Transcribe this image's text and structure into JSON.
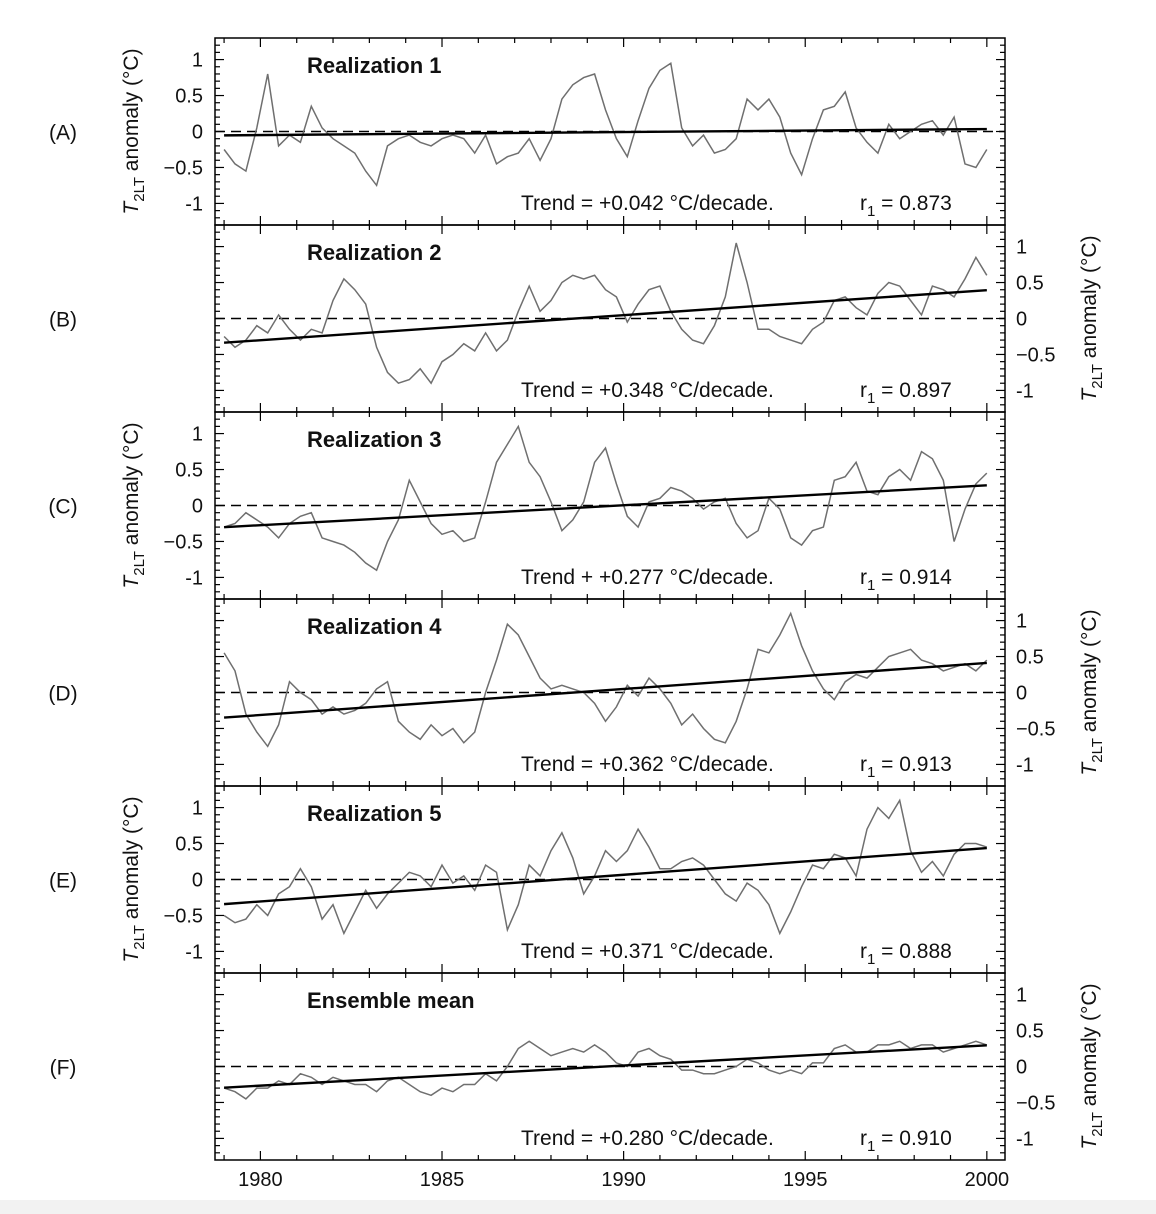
{
  "chart_data": {
    "type": "line",
    "x_axis": {
      "range": [
        1978.75,
        2000.5
      ],
      "ticks": [
        1980,
        1985,
        1990,
        1995,
        2000
      ],
      "tick_labels": [
        "1980",
        "1985",
        "1990",
        "1995",
        "2000"
      ]
    },
    "y_axis": {
      "range": [
        -1.3,
        1.3
      ],
      "ticks": [
        1,
        0.5,
        0,
        -0.5,
        -1
      ],
      "tick_labels": [
        "1",
        "0.5",
        "0",
        "−0.5",
        "-1"
      ],
      "label_main": "T",
      "label_sub": "2LT",
      "label_rest": " anomaly (°C)"
    },
    "panels": [
      {
        "letter": "(A)",
        "title": "Realization 1",
        "stat_text": "Trend = +0.042 °C/decade.",
        "r1_label": "r",
        "r1_sub": "1",
        "r1_value": " = 0.873",
        "trend": 0.042,
        "r1": 0.873,
        "axis_side": "left",
        "color_line": "#6f6f6f",
        "anomaly": {
          "x": [
            1979.0,
            1979.3,
            1979.6,
            1979.9,
            1980.2,
            1980.5,
            1980.8,
            1981.1,
            1981.4,
            1981.7,
            1982.0,
            1982.3,
            1982.6,
            1982.9,
            1983.2,
            1983.5,
            1983.8,
            1984.1,
            1984.4,
            1984.7,
            1985.0,
            1985.3,
            1985.6,
            1985.9,
            1986.2,
            1986.5,
            1986.8,
            1987.1,
            1987.4,
            1987.7,
            1988.0,
            1988.3,
            1988.6,
            1988.9,
            1989.2,
            1989.5,
            1989.8,
            1990.1,
            1990.4,
            1990.7,
            1991.0,
            1991.3,
            1991.6,
            1991.9,
            1992.2,
            1992.5,
            1992.8,
            1993.1,
            1993.4,
            1993.7,
            1994.0,
            1994.3,
            1994.6,
            1994.9,
            1995.2,
            1995.5,
            1995.8,
            1996.1,
            1996.4,
            1996.7,
            1997.0,
            1997.3,
            1997.6,
            1997.9,
            1998.2,
            1998.5,
            1998.8,
            1999.1,
            1999.4,
            1999.7,
            2000.0
          ],
          "y": [
            -0.25,
            -0.45,
            -0.55,
            0.05,
            0.8,
            -0.2,
            -0.05,
            -0.15,
            0.35,
            0.05,
            -0.1,
            -0.2,
            -0.3,
            -0.55,
            -0.75,
            -0.2,
            -0.1,
            -0.05,
            -0.15,
            -0.2,
            -0.1,
            -0.05,
            -0.1,
            -0.3,
            -0.05,
            -0.45,
            -0.35,
            -0.3,
            -0.1,
            -0.4,
            -0.1,
            0.45,
            0.65,
            0.75,
            0.8,
            0.3,
            -0.1,
            -0.35,
            0.15,
            0.6,
            0.85,
            0.95,
            0.05,
            -0.2,
            -0.05,
            -0.3,
            -0.25,
            -0.1,
            0.45,
            0.3,
            0.45,
            0.2,
            -0.3,
            -0.6,
            -0.1,
            0.3,
            0.35,
            0.55,
            0.05,
            -0.15,
            -0.3,
            0.1,
            -0.1,
            0.0,
            0.1,
            0.15,
            -0.05,
            0.2,
            -0.45,
            -0.5,
            -0.25
          ]
        }
      },
      {
        "letter": "(B)",
        "title": "Realization 2",
        "stat_text": "Trend = +0.348 °C/decade.",
        "r1_label": "r",
        "r1_sub": "1",
        "r1_value": " = 0.897",
        "trend": 0.348,
        "r1": 0.897,
        "axis_side": "right",
        "color_line": "#6f6f6f",
        "anomaly": {
          "x": [
            1979.0,
            1979.3,
            1979.6,
            1979.9,
            1980.2,
            1980.5,
            1980.8,
            1981.1,
            1981.4,
            1981.7,
            1982.0,
            1982.3,
            1982.6,
            1982.9,
            1983.2,
            1983.5,
            1983.8,
            1984.1,
            1984.4,
            1984.7,
            1985.0,
            1985.3,
            1985.6,
            1985.9,
            1986.2,
            1986.5,
            1986.8,
            1987.1,
            1987.4,
            1987.7,
            1988.0,
            1988.3,
            1988.6,
            1988.9,
            1989.2,
            1989.5,
            1989.8,
            1990.1,
            1990.4,
            1990.7,
            1991.0,
            1991.3,
            1991.6,
            1991.9,
            1992.2,
            1992.5,
            1992.8,
            1993.1,
            1993.4,
            1993.7,
            1994.0,
            1994.3,
            1994.6,
            1994.9,
            1995.2,
            1995.5,
            1995.8,
            1996.1,
            1996.4,
            1996.7,
            1997.0,
            1997.3,
            1997.6,
            1997.9,
            1998.2,
            1998.5,
            1998.8,
            1999.1,
            1999.4,
            1999.7,
            2000.0
          ],
          "y": [
            -0.25,
            -0.4,
            -0.3,
            -0.1,
            -0.2,
            0.05,
            -0.15,
            -0.3,
            -0.15,
            -0.2,
            0.25,
            0.55,
            0.4,
            0.2,
            -0.4,
            -0.75,
            -0.9,
            -0.85,
            -0.7,
            -0.9,
            -0.6,
            -0.5,
            -0.35,
            -0.45,
            -0.2,
            -0.45,
            -0.3,
            0.1,
            0.45,
            0.1,
            0.25,
            0.5,
            0.6,
            0.55,
            0.6,
            0.4,
            0.3,
            -0.05,
            0.2,
            0.4,
            0.45,
            0.1,
            -0.15,
            -0.3,
            -0.35,
            -0.1,
            0.3,
            1.05,
            0.5,
            -0.15,
            -0.15,
            -0.25,
            -0.3,
            -0.35,
            -0.15,
            -0.05,
            0.25,
            0.3,
            0.15,
            0.05,
            0.35,
            0.5,
            0.45,
            0.25,
            0.05,
            0.45,
            0.4,
            0.3,
            0.55,
            0.85,
            0.6
          ]
        }
      },
      {
        "letter": "(C)",
        "title": "Realization 3",
        "stat_text": "Trend + +0.277 °C/decade.",
        "r1_label": "r",
        "r1_sub": "1",
        "r1_value": " = 0.914",
        "trend": 0.277,
        "r1": 0.914,
        "axis_side": "left",
        "color_line": "#6f6f6f",
        "anomaly": {
          "x": [
            1979.0,
            1979.3,
            1979.6,
            1979.9,
            1980.2,
            1980.5,
            1980.8,
            1981.1,
            1981.4,
            1981.7,
            1982.0,
            1982.3,
            1982.6,
            1982.9,
            1983.2,
            1983.5,
            1983.8,
            1984.1,
            1984.4,
            1984.7,
            1985.0,
            1985.3,
            1985.6,
            1985.9,
            1986.2,
            1986.5,
            1986.8,
            1987.1,
            1987.4,
            1987.7,
            1988.0,
            1988.3,
            1988.6,
            1988.9,
            1989.2,
            1989.5,
            1989.8,
            1990.1,
            1990.4,
            1990.7,
            1991.0,
            1991.3,
            1991.6,
            1991.9,
            1992.2,
            1992.5,
            1992.8,
            1993.1,
            1993.4,
            1993.7,
            1994.0,
            1994.3,
            1994.6,
            1994.9,
            1995.2,
            1995.5,
            1995.8,
            1996.1,
            1996.4,
            1996.7,
            1997.0,
            1997.3,
            1997.6,
            1997.9,
            1998.2,
            1998.5,
            1998.8,
            1999.1,
            1999.4,
            1999.7,
            2000.0
          ],
          "y": [
            -0.3,
            -0.25,
            -0.1,
            -0.2,
            -0.3,
            -0.45,
            -0.25,
            -0.15,
            -0.1,
            -0.45,
            -0.5,
            -0.55,
            -0.65,
            -0.8,
            -0.9,
            -0.5,
            -0.2,
            0.35,
            0.05,
            -0.25,
            -0.4,
            -0.35,
            -0.5,
            -0.45,
            0.05,
            0.6,
            0.85,
            1.1,
            0.6,
            0.4,
            0.05,
            -0.35,
            -0.2,
            0.05,
            0.6,
            0.8,
            0.3,
            -0.15,
            -0.3,
            0.05,
            0.1,
            0.25,
            0.2,
            0.1,
            -0.05,
            0.05,
            0.1,
            -0.25,
            -0.45,
            -0.35,
            0.1,
            -0.05,
            -0.45,
            -0.55,
            -0.35,
            -0.3,
            0.35,
            0.4,
            0.6,
            0.2,
            0.15,
            0.4,
            0.5,
            0.35,
            0.75,
            0.65,
            0.35,
            -0.5,
            -0.05,
            0.3,
            0.45
          ]
        }
      },
      {
        "letter": "(D)",
        "title": "Realization 4",
        "stat_text": "Trend = +0.362 °C/decade.",
        "r1_label": "r",
        "r1_sub": "1",
        "r1_value": " = 0.913",
        "trend": 0.362,
        "r1": 0.913,
        "axis_side": "right",
        "color_line": "#6f6f6f",
        "anomaly": {
          "x": [
            1979.0,
            1979.3,
            1979.6,
            1979.9,
            1980.2,
            1980.5,
            1980.8,
            1981.1,
            1981.4,
            1981.7,
            1982.0,
            1982.3,
            1982.6,
            1982.9,
            1983.2,
            1983.5,
            1983.8,
            1984.1,
            1984.4,
            1984.7,
            1985.0,
            1985.3,
            1985.6,
            1985.9,
            1986.2,
            1986.5,
            1986.8,
            1987.1,
            1987.4,
            1987.7,
            1988.0,
            1988.3,
            1988.6,
            1988.9,
            1989.2,
            1989.5,
            1989.8,
            1990.1,
            1990.4,
            1990.7,
            1991.0,
            1991.3,
            1991.6,
            1991.9,
            1992.2,
            1992.5,
            1992.8,
            1993.1,
            1993.4,
            1993.7,
            1994.0,
            1994.3,
            1994.6,
            1994.9,
            1995.2,
            1995.5,
            1995.8,
            1996.1,
            1996.4,
            1996.7,
            1997.0,
            1997.3,
            1997.6,
            1997.9,
            1998.2,
            1998.5,
            1998.8,
            1999.1,
            1999.4,
            1999.7,
            2000.0
          ],
          "y": [
            0.55,
            0.3,
            -0.3,
            -0.55,
            -0.75,
            -0.45,
            0.15,
            0.0,
            -0.1,
            -0.3,
            -0.2,
            -0.3,
            -0.25,
            -0.15,
            0.05,
            0.15,
            -0.4,
            -0.55,
            -0.65,
            -0.45,
            -0.6,
            -0.5,
            -0.7,
            -0.55,
            0.0,
            0.45,
            0.95,
            0.8,
            0.5,
            0.2,
            0.05,
            0.1,
            0.05,
            0.0,
            -0.15,
            -0.4,
            -0.2,
            0.1,
            -0.05,
            0.2,
            0.05,
            -0.15,
            -0.45,
            -0.3,
            -0.5,
            -0.65,
            -0.7,
            -0.4,
            0.05,
            0.6,
            0.55,
            0.8,
            1.1,
            0.65,
            0.3,
            0.05,
            -0.1,
            0.15,
            0.25,
            0.2,
            0.35,
            0.5,
            0.55,
            0.6,
            0.45,
            0.4,
            0.3,
            0.35,
            0.4,
            0.3,
            0.45
          ]
        }
      },
      {
        "letter": "(E)",
        "title": "Realization 5",
        "stat_text": "Trend = +0.371 °C/decade.",
        "r1_label": "r",
        "r1_sub": "1",
        "r1_value": " = 0.888",
        "trend": 0.371,
        "r1": 0.888,
        "axis_side": "left",
        "color_line": "#6f6f6f",
        "anomaly": {
          "x": [
            1979.0,
            1979.3,
            1979.6,
            1979.9,
            1980.2,
            1980.5,
            1980.8,
            1981.1,
            1981.4,
            1981.7,
            1982.0,
            1982.3,
            1982.6,
            1982.9,
            1983.2,
            1983.5,
            1983.8,
            1984.1,
            1984.4,
            1984.7,
            1985.0,
            1985.3,
            1985.6,
            1985.9,
            1986.2,
            1986.5,
            1986.8,
            1987.1,
            1987.4,
            1987.7,
            1988.0,
            1988.3,
            1988.6,
            1988.9,
            1989.2,
            1989.5,
            1989.8,
            1990.1,
            1990.4,
            1990.7,
            1991.0,
            1991.3,
            1991.6,
            1991.9,
            1992.2,
            1992.5,
            1992.8,
            1993.1,
            1993.4,
            1993.7,
            1994.0,
            1994.3,
            1994.6,
            1994.9,
            1995.2,
            1995.5,
            1995.8,
            1996.1,
            1996.4,
            1996.7,
            1997.0,
            1997.3,
            1997.6,
            1997.9,
            1998.2,
            1998.5,
            1998.8,
            1999.1,
            1999.4,
            1999.7,
            2000.0
          ],
          "y": [
            -0.5,
            -0.6,
            -0.55,
            -0.35,
            -0.5,
            -0.2,
            -0.1,
            0.15,
            -0.1,
            -0.55,
            -0.35,
            -0.75,
            -0.45,
            -0.15,
            -0.4,
            -0.2,
            -0.05,
            0.1,
            0.05,
            -0.1,
            0.2,
            -0.05,
            0.05,
            -0.15,
            0.2,
            0.1,
            -0.7,
            -0.35,
            0.2,
            0.05,
            0.4,
            0.65,
            0.3,
            -0.2,
            0.05,
            0.4,
            0.25,
            0.4,
            0.7,
            0.45,
            0.15,
            0.15,
            0.25,
            0.3,
            0.2,
            0.0,
            -0.2,
            -0.3,
            -0.05,
            -0.15,
            -0.35,
            -0.75,
            -0.45,
            -0.1,
            0.2,
            0.15,
            0.35,
            0.3,
            0.05,
            0.7,
            1.0,
            0.85,
            1.1,
            0.4,
            0.1,
            0.25,
            0.05,
            0.35,
            0.5,
            0.5,
            0.45
          ]
        }
      },
      {
        "letter": "(F)",
        "title": "Ensemble mean",
        "stat_text": "Trend = +0.280 °C/decade.",
        "r1_label": "r",
        "r1_sub": "1",
        "r1_value": " = 0.910",
        "trend": 0.28,
        "r1": 0.91,
        "axis_side": "right",
        "color_line": "#6f6f6f",
        "anomaly": {
          "x": [
            1979.0,
            1979.3,
            1979.6,
            1979.9,
            1980.2,
            1980.5,
            1980.8,
            1981.1,
            1981.4,
            1981.7,
            1982.0,
            1982.3,
            1982.6,
            1982.9,
            1983.2,
            1983.5,
            1983.8,
            1984.1,
            1984.4,
            1984.7,
            1985.0,
            1985.3,
            1985.6,
            1985.9,
            1986.2,
            1986.5,
            1986.8,
            1987.1,
            1987.4,
            1987.7,
            1988.0,
            1988.3,
            1988.6,
            1988.9,
            1989.2,
            1989.5,
            1989.8,
            1990.1,
            1990.4,
            1990.7,
            1991.0,
            1991.3,
            1991.6,
            1991.9,
            1992.2,
            1992.5,
            1992.8,
            1993.1,
            1993.4,
            1993.7,
            1994.0,
            1994.3,
            1994.6,
            1994.9,
            1995.2,
            1995.5,
            1995.8,
            1996.1,
            1996.4,
            1996.7,
            1997.0,
            1997.3,
            1997.6,
            1997.9,
            1998.2,
            1998.5,
            1998.8,
            1999.1,
            1999.4,
            1999.7,
            2000.0
          ],
          "y": [
            -0.3,
            -0.35,
            -0.45,
            -0.3,
            -0.3,
            -0.2,
            -0.25,
            -0.1,
            -0.15,
            -0.25,
            -0.15,
            -0.2,
            -0.25,
            -0.25,
            -0.35,
            -0.2,
            -0.15,
            -0.25,
            -0.35,
            -0.4,
            -0.3,
            -0.35,
            -0.25,
            -0.25,
            -0.1,
            -0.2,
            0.0,
            0.25,
            0.35,
            0.25,
            0.15,
            0.2,
            0.25,
            0.2,
            0.3,
            0.2,
            0.05,
            0.0,
            0.2,
            0.25,
            0.15,
            0.1,
            -0.05,
            -0.05,
            -0.1,
            -0.1,
            -0.05,
            0.0,
            0.1,
            0.05,
            -0.05,
            -0.1,
            -0.05,
            -0.1,
            0.05,
            0.05,
            0.25,
            0.3,
            0.2,
            0.2,
            0.3,
            0.3,
            0.35,
            0.25,
            0.3,
            0.3,
            0.2,
            0.25,
            0.3,
            0.35,
            0.3
          ]
        }
      }
    ]
  }
}
